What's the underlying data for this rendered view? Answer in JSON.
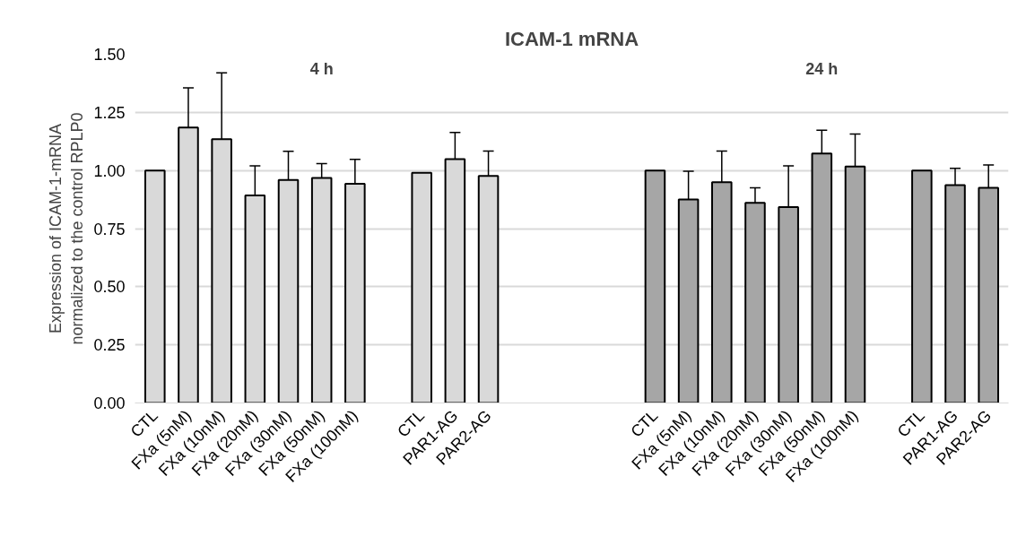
{
  "chart_data": {
    "type": "bar",
    "title": "ICAM-1 mRNA",
    "ylabel": "Expression of ICAM-1-mRNA\nnormalized to the control RPLP0",
    "categories": [
      "CTL",
      "FXa (5nM)",
      "FXa (10nM)",
      "FXa (20nM)",
      "FXa (30nM)",
      "FXa (50nM)",
      "FXa (100nM)",
      null,
      "CTL",
      "PAR1-AG",
      "PAR2-AG",
      null,
      null,
      null,
      null,
      "CTL",
      "FXa (5nM)",
      "FXa (10nM)",
      "FXa (20nM)",
      "FXa (30nM)",
      "FXa (50nM)",
      "FXa (100nM)",
      null,
      "CTL",
      "PAR1-AG",
      "PAR2-AG"
    ],
    "series": [
      {
        "color": "#d9d9d9",
        "values": [
          1.0,
          1.185,
          1.135,
          0.893,
          0.959,
          0.968,
          0.943,
          null,
          0.99,
          1.049,
          0.977,
          null,
          null,
          null,
          null,
          null,
          null,
          null,
          null,
          null,
          null,
          null,
          null,
          null,
          null,
          null
        ],
        "errors": [
          null,
          0.17,
          0.285,
          0.127,
          0.124,
          0.062,
          0.105,
          null,
          null,
          0.115,
          0.107,
          null,
          null,
          null,
          null,
          null,
          null,
          null,
          null,
          null,
          null,
          null,
          null,
          null,
          null,
          null
        ]
      },
      {
        "color": "#a6a6a6",
        "values": [
          null,
          null,
          null,
          null,
          null,
          null,
          null,
          null,
          null,
          null,
          null,
          null,
          null,
          null,
          null,
          1.0,
          0.875,
          0.95,
          0.861,
          0.843,
          1.073,
          1.017,
          null,
          1.0,
          0.937,
          0.925
        ],
        "errors": [
          null,
          null,
          null,
          null,
          null,
          null,
          null,
          null,
          null,
          null,
          null,
          null,
          null,
          null,
          null,
          null,
          0.122,
          0.134,
          0.064,
          0.177,
          0.1,
          0.14,
          null,
          null,
          0.072,
          0.099
        ]
      }
    ],
    "annotations": [
      "4 h",
      "24 h"
    ],
    "ylim": [
      0,
      1.5
    ],
    "yticks": [
      {
        "value": 0,
        "label": "0.00"
      },
      {
        "value": 0.25,
        "label": "0.25"
      },
      {
        "value": 0.5,
        "label": "0.50"
      },
      {
        "value": 0.75,
        "label": "0.75"
      },
      {
        "value": 1.0,
        "label": "1.00"
      },
      {
        "value": 1.25,
        "label": "1.25"
      },
      {
        "value": 1.5,
        "label": "1.50"
      }
    ],
    "grid": "y"
  }
}
